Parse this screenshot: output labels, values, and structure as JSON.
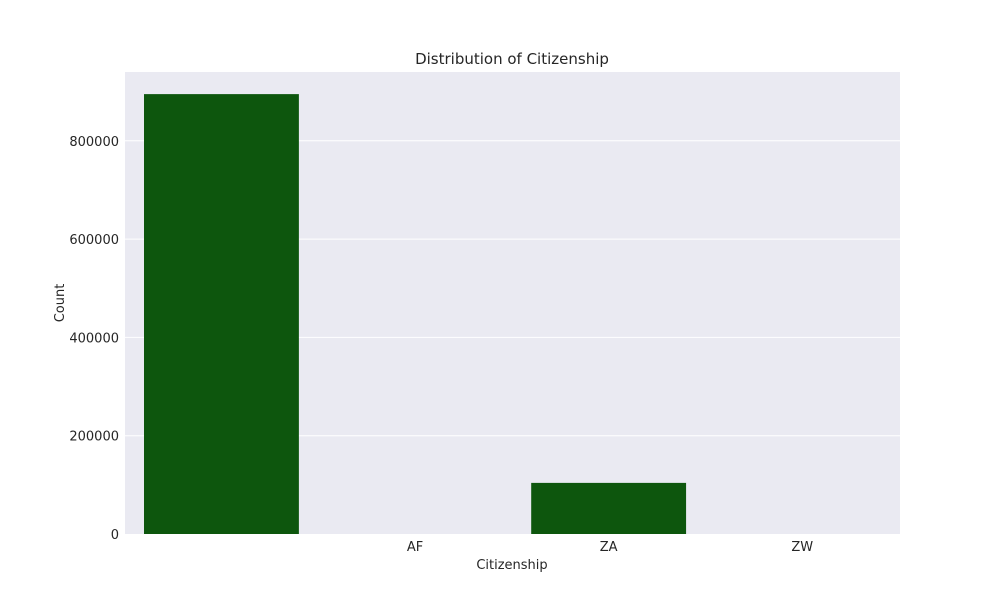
{
  "chart_data": {
    "type": "bar",
    "title": "Distribution of Citizenship",
    "xlabel": "Citizenship",
    "ylabel": "Count",
    "categories": [
      "",
      "AF",
      "ZA",
      "ZW"
    ],
    "values": [
      895000,
      0,
      104000,
      0
    ],
    "ylim": [
      0,
      940000
    ],
    "yticks": [
      0,
      200000,
      400000,
      600000,
      800000
    ],
    "grid": true,
    "colors": {
      "bar": "#0d560d",
      "plot_background": "#eaeaf2",
      "grid": "#ffffff",
      "text": "#262626"
    }
  }
}
